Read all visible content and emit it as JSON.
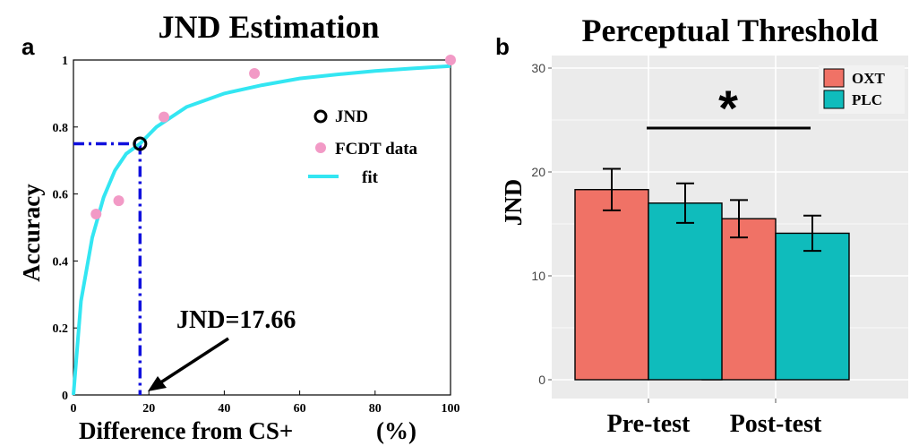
{
  "colors": {
    "fit": "#33e6f2",
    "data_points": "#f29ac6",
    "jnd_marker": "#000000",
    "guide": "#1010dd",
    "oxt": "#f07266",
    "plc": "#0fbcbc",
    "panel_b_bg": "#ebebeb",
    "grid": "#ffffff"
  },
  "chart_data": [
    {
      "panel": "a",
      "type": "scatter",
      "title": "JND Estimation",
      "xlabel": "Difference from CS+",
      "xlabel_unit": "(%)",
      "ylabel": "Accuracy",
      "xlim": [
        0,
        100
      ],
      "ylim": [
        0,
        1
      ],
      "xticks": [
        "0",
        "20",
        "40",
        "60",
        "80",
        "100"
      ],
      "yticks": [
        "0",
        "0.2",
        "0.4",
        "0.6",
        "0.8",
        "1"
      ],
      "grid": false,
      "legend_position": "right",
      "legend": [
        {
          "name": "JND",
          "marker": "circle-open"
        },
        {
          "name": "FCDT data",
          "marker": "dot"
        },
        {
          "name": "fit",
          "marker": "line"
        }
      ],
      "series": [
        {
          "name": "FCDT data",
          "x": [
            6,
            12,
            24,
            48,
            100
          ],
          "y": [
            0.54,
            0.58,
            0.83,
            0.96,
            1.0
          ]
        },
        {
          "name": "fit",
          "x": [
            0,
            2,
            5,
            8,
            11,
            14,
            17.66,
            22,
            30,
            40,
            50,
            60,
            70,
            80,
            90,
            100
          ],
          "y": [
            0.0,
            0.28,
            0.47,
            0.59,
            0.67,
            0.72,
            0.75,
            0.8,
            0.86,
            0.9,
            0.925,
            0.945,
            0.957,
            0.967,
            0.975,
            0.982
          ]
        },
        {
          "name": "JND",
          "x": [
            17.66
          ],
          "y": [
            0.75
          ]
        }
      ],
      "annotation": {
        "text": "JND=17.66",
        "x": 17.66,
        "y": 0
      }
    },
    {
      "panel": "b",
      "type": "bar",
      "title": "Perceptual Threshold",
      "xlabel": "",
      "ylabel": "JND",
      "categories": [
        "Pre-test",
        "Post-test"
      ],
      "ylim": [
        0,
        30
      ],
      "yticks": [
        "0",
        "10",
        "20",
        "30"
      ],
      "grid": true,
      "legend_position": "top-right",
      "series": [
        {
          "name": "OXT",
          "values": [
            18.3,
            15.5
          ],
          "error": [
            2.0,
            1.8
          ]
        },
        {
          "name": "PLC",
          "values": [
            17.0,
            14.1
          ],
          "error": [
            1.9,
            1.7
          ]
        }
      ],
      "significance": {
        "symbol": "*",
        "between": [
          "Pre-test",
          "Post-test"
        ]
      }
    }
  ]
}
